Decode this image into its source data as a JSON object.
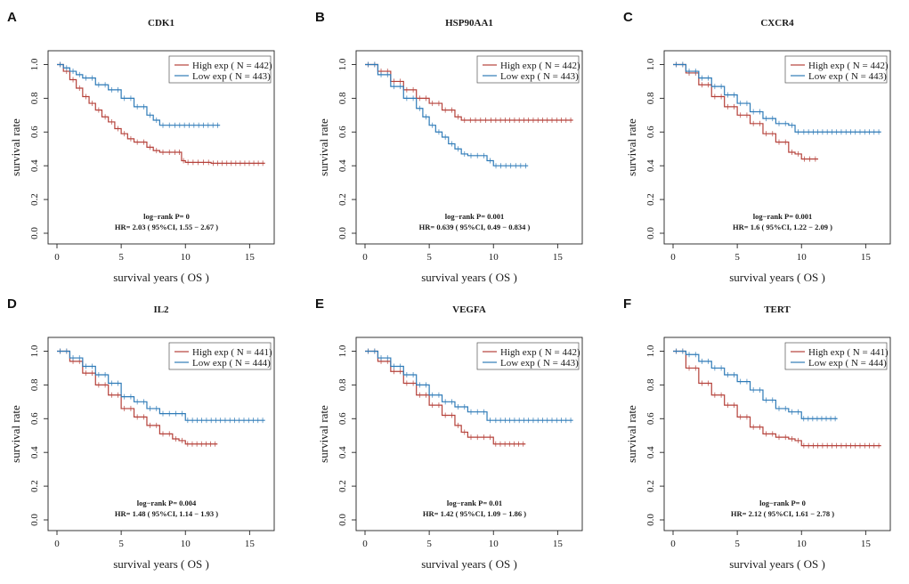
{
  "figure": {
    "colors": {
      "high": "#b5413a",
      "low": "#2f7bb8",
      "axis": "#222222"
    }
  },
  "chart_data": [
    {
      "type": "line",
      "panel": "A",
      "title": "CDK1",
      "xlabel": "survival years ( OS   )",
      "ylabel": "survival rate",
      "xlim": [
        0,
        16.5
      ],
      "ylim": [
        0,
        1.05
      ],
      "xticks": [
        0,
        5,
        10,
        15
      ],
      "yticks": [
        0.0,
        0.2,
        0.4,
        0.6,
        0.8,
        1.0
      ],
      "xtick_labels": [
        "0",
        "5",
        "10",
        "15"
      ],
      "ytick_labels": [
        "0.0",
        "0.2",
        "0.4",
        "0.6",
        "0.8",
        "1.0"
      ],
      "legend_position": "top-right",
      "pvalue": "log−rank P= 0",
      "hr": "HR= 2.03 ( 95%CI, 1.55 − 2.67 )",
      "series": [
        {
          "name": "High exp ( N = 442)",
          "color_key": "high",
          "x": [
            0,
            0.5,
            1,
            1.5,
            2,
            2.5,
            3,
            3.5,
            4,
            4.5,
            5,
            5.5,
            6,
            7,
            7.5,
            8,
            9,
            9.7,
            10,
            12,
            16.2
          ],
          "y": [
            1,
            0.96,
            0.91,
            0.86,
            0.81,
            0.77,
            0.73,
            0.69,
            0.66,
            0.62,
            0.59,
            0.56,
            0.54,
            0.51,
            0.49,
            0.48,
            0.48,
            0.43,
            0.42,
            0.415,
            0.415
          ]
        },
        {
          "name": "Low exp ( N = 443)",
          "color_key": "low",
          "x": [
            0,
            0.5,
            1,
            1.5,
            2,
            3,
            4,
            5,
            6,
            7,
            7.5,
            8,
            9,
            12.7
          ],
          "y": [
            1,
            0.98,
            0.96,
            0.94,
            0.92,
            0.88,
            0.85,
            0.8,
            0.75,
            0.7,
            0.67,
            0.64,
            0.64,
            0.64
          ]
        }
      ]
    },
    {
      "type": "line",
      "panel": "B",
      "title": "HSP90AA1",
      "xlabel": "survival years ( OS   )",
      "ylabel": "survival rate",
      "xlim": [
        0,
        16.5
      ],
      "ylim": [
        0,
        1.05
      ],
      "xticks": [
        0,
        5,
        10,
        15
      ],
      "yticks": [
        0.0,
        0.2,
        0.4,
        0.6,
        0.8,
        1.0
      ],
      "xtick_labels": [
        "0",
        "5",
        "10",
        "15"
      ],
      "ytick_labels": [
        "0.0",
        "0.2",
        "0.4",
        "0.6",
        "0.8",
        "1.0"
      ],
      "legend_position": "top-right",
      "pvalue": "log−rank P= 0.001",
      "hr": "HR= 0.639 ( 95%CI, 0.49 − 0.834 )",
      "series": [
        {
          "name": "High exp ( N = 442)",
          "color_key": "high",
          "x": [
            0,
            1,
            2,
            3,
            4,
            5,
            6,
            7,
            7.5,
            8,
            10,
            16.2
          ],
          "y": [
            1,
            0.96,
            0.9,
            0.85,
            0.8,
            0.77,
            0.73,
            0.69,
            0.67,
            0.67,
            0.67,
            0.67
          ]
        },
        {
          "name": "Low exp ( N = 443)",
          "color_key": "low",
          "x": [
            0,
            1,
            2,
            3,
            4,
            4.5,
            5,
            5.5,
            6,
            6.5,
            7,
            7.5,
            8,
            8.5,
            9,
            9.5,
            10,
            12.7
          ],
          "y": [
            1,
            0.94,
            0.87,
            0.8,
            0.74,
            0.69,
            0.64,
            0.6,
            0.57,
            0.53,
            0.5,
            0.47,
            0.46,
            0.46,
            0.46,
            0.43,
            0.4,
            0.4
          ]
        }
      ]
    },
    {
      "type": "line",
      "panel": "C",
      "title": "CXCR4",
      "xlabel": "survival years ( OS   )",
      "ylabel": "survival rate",
      "xlim": [
        0,
        16.5
      ],
      "ylim": [
        0,
        1.05
      ],
      "xticks": [
        0,
        5,
        10,
        15
      ],
      "yticks": [
        0.0,
        0.2,
        0.4,
        0.6,
        0.8,
        1.0
      ],
      "xtick_labels": [
        "0",
        "5",
        "10",
        "15"
      ],
      "ytick_labels": [
        "0.0",
        "0.2",
        "0.4",
        "0.6",
        "0.8",
        "1.0"
      ],
      "legend_position": "top-right",
      "pvalue": "log−rank P= 0.001",
      "hr": "HR= 1.6 ( 95%CI, 1.22 − 2.09 )",
      "series": [
        {
          "name": "High exp ( N = 442)",
          "color_key": "high",
          "x": [
            0,
            1,
            2,
            3,
            4,
            5,
            6,
            7,
            8,
            9,
            9.5,
            10,
            11.3
          ],
          "y": [
            1,
            0.95,
            0.88,
            0.81,
            0.75,
            0.7,
            0.65,
            0.59,
            0.54,
            0.48,
            0.47,
            0.44,
            0.44
          ]
        },
        {
          "name": "Low exp ( N = 443)",
          "color_key": "low",
          "x": [
            0,
            1,
            2,
            3,
            4,
            5,
            6,
            7,
            8,
            9,
            9.5,
            10,
            16.2
          ],
          "y": [
            1,
            0.96,
            0.92,
            0.87,
            0.82,
            0.77,
            0.72,
            0.68,
            0.65,
            0.64,
            0.6,
            0.6,
            0.6
          ]
        }
      ]
    },
    {
      "type": "line",
      "panel": "D",
      "title": "IL2",
      "xlabel": "survival years ( OS   )",
      "ylabel": "survival rate",
      "xlim": [
        0,
        16.5
      ],
      "ylim": [
        0,
        1.05
      ],
      "xticks": [
        0,
        5,
        10,
        15
      ],
      "yticks": [
        0.0,
        0.2,
        0.4,
        0.6,
        0.8,
        1.0
      ],
      "xtick_labels": [
        "0",
        "5",
        "10",
        "15"
      ],
      "ytick_labels": [
        "0.0",
        "0.2",
        "0.4",
        "0.6",
        "0.8",
        "1.0"
      ],
      "legend_position": "top-right",
      "pvalue": "log−rank P= 0.004",
      "hr": "HR= 1.48 ( 95%CI, 1.14 − 1.93 )",
      "series": [
        {
          "name": "High exp ( N = 441)",
          "color_key": "high",
          "x": [
            0,
            1,
            2,
            3,
            4,
            5,
            6,
            7,
            8,
            9,
            9.5,
            10,
            12.5
          ],
          "y": [
            1,
            0.94,
            0.87,
            0.8,
            0.74,
            0.66,
            0.61,
            0.56,
            0.51,
            0.48,
            0.47,
            0.45,
            0.45
          ]
        },
        {
          "name": "Low exp ( N = 444)",
          "color_key": "low",
          "x": [
            0,
            1,
            2,
            3,
            4,
            5,
            6,
            7,
            8,
            9,
            9.5,
            10,
            16.2
          ],
          "y": [
            1,
            0.96,
            0.91,
            0.86,
            0.81,
            0.73,
            0.7,
            0.66,
            0.63,
            0.63,
            0.63,
            0.59,
            0.59
          ]
        }
      ]
    },
    {
      "type": "line",
      "panel": "E",
      "title": "VEGFA",
      "xlabel": "survival years ( OS   )",
      "ylabel": "survival rate",
      "xlim": [
        0,
        16.5
      ],
      "ylim": [
        0,
        1.05
      ],
      "xticks": [
        0,
        5,
        10,
        15
      ],
      "yticks": [
        0.0,
        0.2,
        0.4,
        0.6,
        0.8,
        1.0
      ],
      "xtick_labels": [
        "0",
        "5",
        "10",
        "15"
      ],
      "ytick_labels": [
        "0.0",
        "0.2",
        "0.4",
        "0.6",
        "0.8",
        "1.0"
      ],
      "legend_position": "top-right",
      "pvalue": "log−rank P= 0.01",
      "hr": "HR= 1.42 ( 95%CI, 1.09 − 1.86 )",
      "series": [
        {
          "name": "High exp ( N = 442)",
          "color_key": "high",
          "x": [
            0,
            1,
            2,
            3,
            4,
            5,
            6,
            7,
            7.5,
            8,
            9,
            9.5,
            10,
            12.5
          ],
          "y": [
            1,
            0.94,
            0.88,
            0.81,
            0.74,
            0.68,
            0.62,
            0.56,
            0.52,
            0.49,
            0.49,
            0.49,
            0.45,
            0.45
          ]
        },
        {
          "name": "Low exp ( N = 443)",
          "color_key": "low",
          "x": [
            0,
            1,
            2,
            3,
            4,
            5,
            6,
            7,
            8,
            9,
            9.5,
            10,
            16.2
          ],
          "y": [
            1,
            0.96,
            0.91,
            0.86,
            0.8,
            0.74,
            0.7,
            0.67,
            0.64,
            0.64,
            0.59,
            0.59,
            0.59
          ]
        }
      ]
    },
    {
      "type": "line",
      "panel": "F",
      "title": "TERT",
      "xlabel": "survival years ( OS   )",
      "ylabel": "survival rate",
      "xlim": [
        0,
        16.5
      ],
      "ylim": [
        0,
        1.05
      ],
      "xticks": [
        0,
        5,
        10,
        15
      ],
      "yticks": [
        0.0,
        0.2,
        0.4,
        0.6,
        0.8,
        1.0
      ],
      "xtick_labels": [
        "0",
        "5",
        "10",
        "15"
      ],
      "ytick_labels": [
        "0.0",
        "0.2",
        "0.4",
        "0.6",
        "0.8",
        "1.0"
      ],
      "legend_position": "top-right",
      "pvalue": "log−rank P= 0",
      "hr": "HR= 2.12 ( 95%CI, 1.61 − 2.78 )",
      "series": [
        {
          "name": "High exp ( N = 441)",
          "color_key": "high",
          "x": [
            0,
            1,
            2,
            3,
            4,
            5,
            6,
            7,
            8,
            9,
            9.5,
            10,
            16.2
          ],
          "y": [
            1,
            0.9,
            0.81,
            0.74,
            0.68,
            0.61,
            0.55,
            0.51,
            0.49,
            0.48,
            0.47,
            0.44,
            0.44
          ]
        },
        {
          "name": "Low exp ( N = 444)",
          "color_key": "low",
          "x": [
            0,
            1,
            2,
            3,
            4,
            5,
            6,
            7,
            8,
            9,
            10,
            12.8
          ],
          "y": [
            1,
            0.98,
            0.94,
            0.9,
            0.86,
            0.82,
            0.77,
            0.71,
            0.66,
            0.64,
            0.6,
            0.6
          ]
        }
      ]
    }
  ]
}
